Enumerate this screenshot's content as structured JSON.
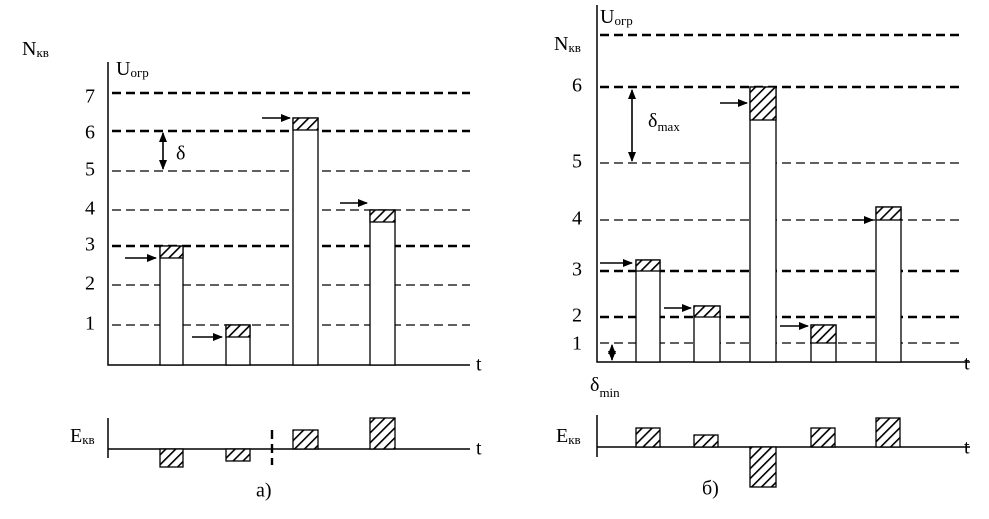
{
  "left": {
    "y_label": {
      "main": "N",
      "sub": "кв"
    },
    "u_label": {
      "main": "U",
      "sub": "огр"
    },
    "levels": [
      1,
      2,
      3,
      4,
      5,
      6,
      7
    ],
    "delta": "δ",
    "t_axis": "t",
    "e_label": {
      "main": "E",
      "sub": "кв"
    },
    "e_t_axis": "t",
    "caption": "а)"
  },
  "right": {
    "u_label": {
      "main": "U",
      "sub": "огр"
    },
    "y_label": {
      "main": "N",
      "sub": "кв"
    },
    "levels": [
      1,
      2,
      3,
      4,
      5,
      6
    ],
    "delta_max": {
      "main": "δ",
      "sub": "max"
    },
    "delta_min": {
      "main": "δ",
      "sub": "min"
    },
    "t_axis": "t",
    "e_label": {
      "main": "E",
      "sub": "кв"
    },
    "e_t_axis": "t",
    "caption": "б)"
  }
}
